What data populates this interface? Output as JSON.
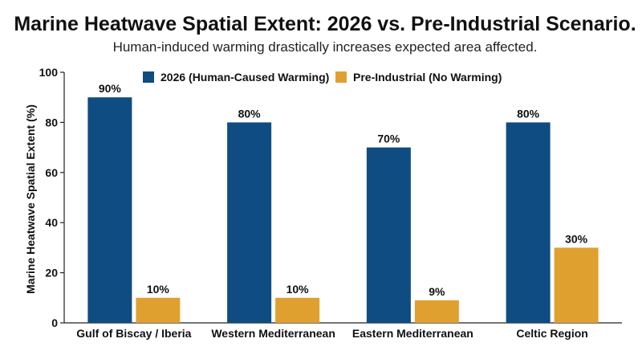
{
  "chart_data": {
    "type": "bar",
    "title": "Marine Heatwave Spatial Extent: 2026 vs. Pre-Industrial Scenario.",
    "subtitle": "Human-induced warming drastically increases expected area affected.",
    "xlabel": "",
    "ylabel": "Marine Heatwave Spatial Extent (%)",
    "ylim": [
      0,
      100
    ],
    "yticks": [
      0,
      20,
      40,
      60,
      80,
      100
    ],
    "categories": [
      "Gulf of Biscay / Iberia",
      "Western Mediterranean",
      "Eastern Mediterranean",
      "Celtic Region"
    ],
    "series": [
      {
        "name": "2026 (Human-Caused Warming)",
        "values": [
          90,
          80,
          70,
          80
        ],
        "labels": [
          "90%",
          "80%",
          "70%",
          "80%"
        ],
        "color": "#0f4c81"
      },
      {
        "name": "Pre-Industrial (No Warming)",
        "values": [
          10,
          10,
          9,
          30
        ],
        "labels": [
          "10%",
          "10%",
          "9%",
          "30%"
        ],
        "color": "#e0a030"
      }
    ],
    "legend_position": "top",
    "grid": false
  }
}
